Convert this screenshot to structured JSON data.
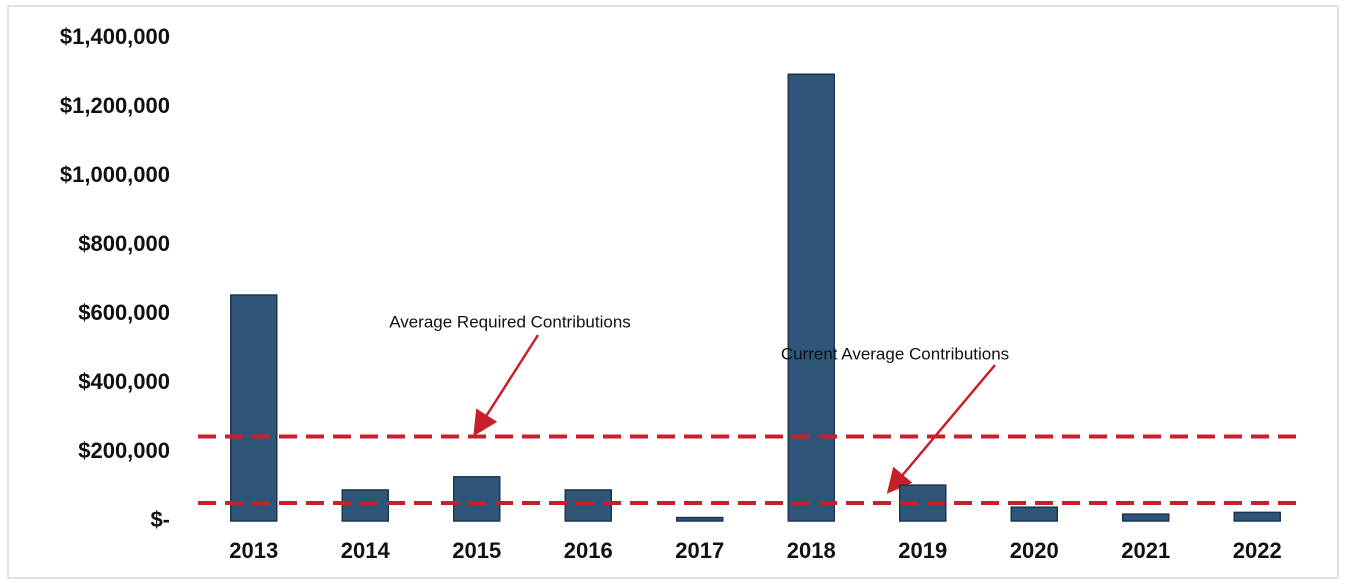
{
  "chart_data": {
    "type": "bar",
    "categories": [
      "2013",
      "2014",
      "2015",
      "2016",
      "2017",
      "2018",
      "2019",
      "2020",
      "2021",
      "2022"
    ],
    "values": [
      655000,
      90000,
      128000,
      90000,
      10000,
      1295000,
      104000,
      40000,
      20000,
      25000
    ],
    "color": "#2f5679",
    "ylim": [
      0,
      1400000
    ],
    "yticks": [
      {
        "value": 0,
        "label": "$-"
      },
      {
        "value": 200000,
        "label": "$200,000"
      },
      {
        "value": 400000,
        "label": "$400,000"
      },
      {
        "value": 600000,
        "label": "$600,000"
      },
      {
        "value": 800000,
        "label": "$800,000"
      },
      {
        "value": 1000000,
        "label": "$1,000,000"
      },
      {
        "value": 1200000,
        "label": "$1,200,000"
      },
      {
        "value": 1400000,
        "label": "$1,400,000"
      }
    ],
    "grid": false,
    "reference_lines": [
      {
        "label": "Average Required Contributions",
        "value": 245000,
        "color": "#c8202a"
      },
      {
        "label": "Current Average Contributions",
        "value": 52000,
        "color": "#c8202a"
      }
    ]
  }
}
